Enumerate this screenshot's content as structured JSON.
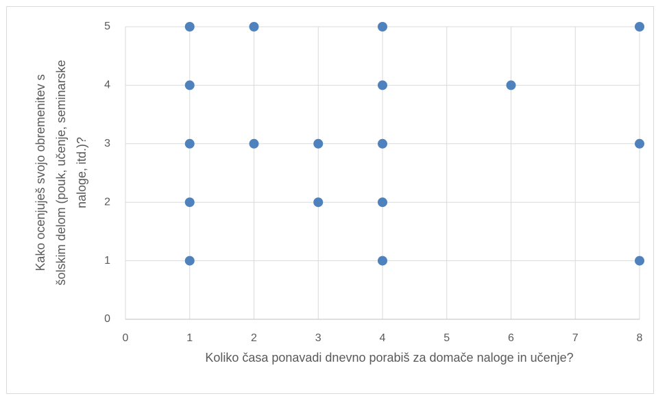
{
  "chart_data": {
    "type": "scatter",
    "xlabel": "Koliko časa ponavadi dnevno porabiš za domače naloge in učenje?",
    "ylabel": [
      "Kako ocenjuješ svojo obremenitev s",
      "šolskim delom (pouk, učenje, seminarske",
      "naloge, itd.)?"
    ],
    "x": [
      1,
      1,
      1,
      1,
      1,
      2,
      2,
      3,
      3,
      4,
      4,
      4,
      4,
      4,
      6,
      8,
      8,
      8
    ],
    "y": [
      5,
      4,
      3,
      2,
      1,
      5,
      3,
      3,
      2,
      5,
      4,
      3,
      2,
      1,
      4,
      5,
      3,
      1
    ],
    "color": "#4f81bd",
    "xlim": [
      0,
      8
    ],
    "xticks": [
      0,
      1,
      2,
      3,
      4,
      5,
      6,
      7,
      8
    ],
    "ylim": [
      0,
      5
    ],
    "yticks": [
      0,
      1,
      2,
      3,
      4,
      5
    ],
    "grid": true
  }
}
